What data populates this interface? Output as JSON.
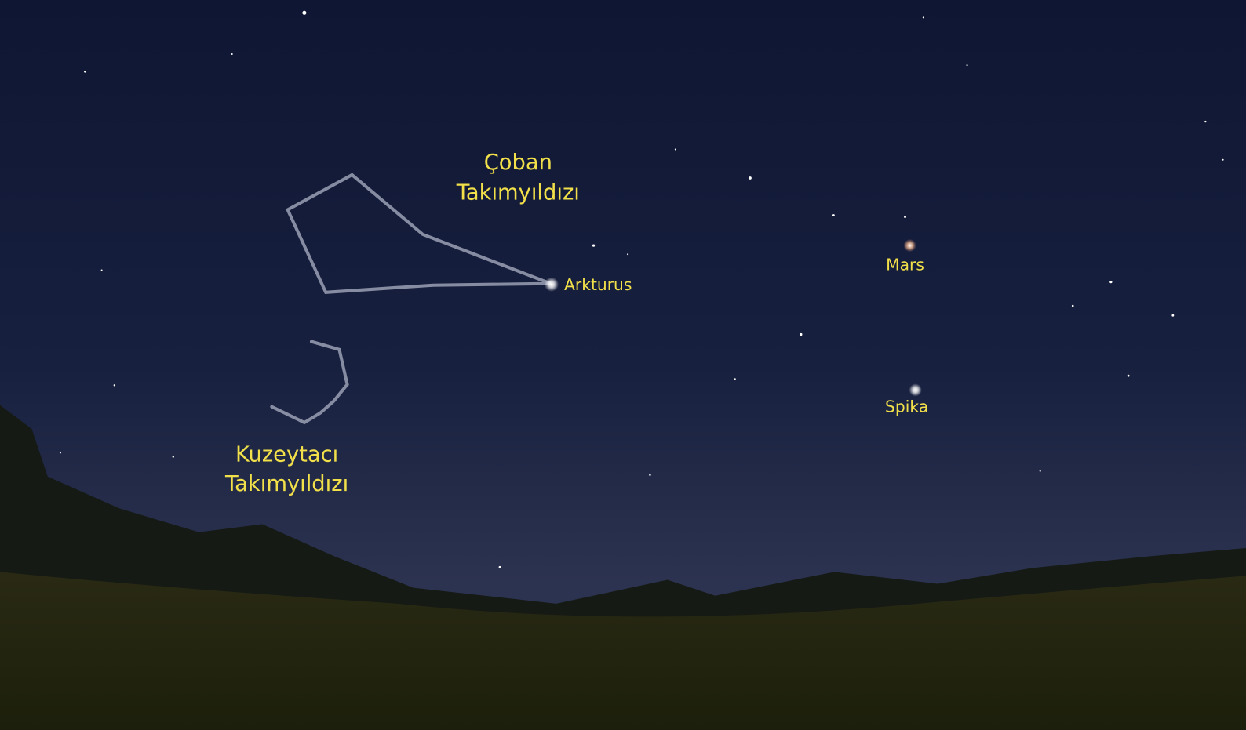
{
  "constellations": [
    {
      "lines": [
        "Çoban",
        "Takımyıldızı"
      ]
    },
    {
      "lines": [
        "Kuzeytacı",
        "Takımyıldızı"
      ]
    }
  ],
  "stars": [
    "Arkturus",
    "Mars",
    "Spika"
  ]
}
